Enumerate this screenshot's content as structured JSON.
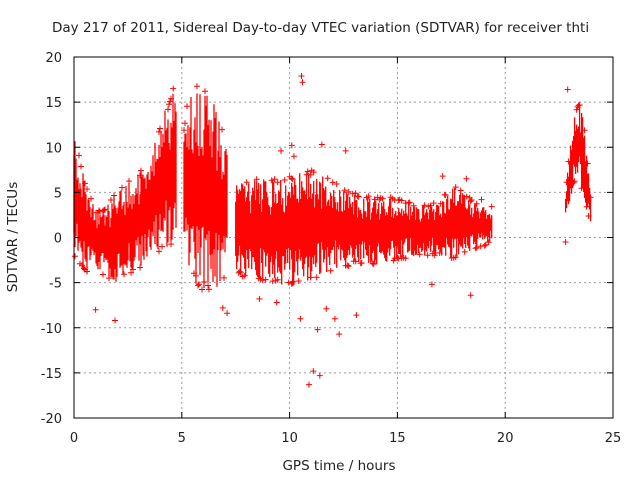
{
  "chart_data": {
    "type": "scatter",
    "title": "Day 217 of 2011, Sidereal Day-to-day VTEC variation (SDTVAR) for receiver thti",
    "xlabel": "GPS time / hours",
    "ylabel": "SDTVAR / TECUs",
    "xlim": [
      0,
      25
    ],
    "ylim": [
      -20,
      20
    ],
    "xticks": [
      0,
      5,
      10,
      15,
      20,
      25
    ],
    "yticks": [
      -20,
      -15,
      -10,
      -5,
      0,
      5,
      10,
      15,
      20
    ],
    "grid": true,
    "marker": "+",
    "color": "#ff0000",
    "envelope": [
      {
        "segment": 1,
        "x": [
          0,
          0.1,
          0.3,
          0.6,
          1.0,
          1.5,
          1.9,
          2.2,
          2.6,
          3.0,
          3.5,
          3.9,
          4.2,
          4.4,
          4.6,
          4.75
        ],
        "upper": [
          11.5,
          11.0,
          8.5,
          5.5,
          3.0,
          3.5,
          5.0,
          5.5,
          6.5,
          7.0,
          9.5,
          12.0,
          14.0,
          15.0,
          16.5,
          16.0
        ],
        "lower": [
          -2.5,
          -3.0,
          -3.5,
          -4.0,
          -4.0,
          -4.5,
          -5.0,
          -4.5,
          -4.0,
          -3.5,
          -2.5,
          -2.0,
          -1.5,
          -1.0,
          -0.5,
          -0.5
        ]
      },
      {
        "segment": 2,
        "x": [
          5.1,
          5.3,
          5.6,
          6.0,
          6.4,
          6.8,
          7.1
        ],
        "upper": [
          12.5,
          15.5,
          17.0,
          16.5,
          15.5,
          13.0,
          10.0
        ],
        "lower": [
          -3.0,
          -4.0,
          -5.0,
          -6.0,
          -6.5,
          -5.0,
          -4.0
        ]
      },
      {
        "segment": 3,
        "x": [
          7.5,
          8.0,
          9.0,
          10.0,
          11.0,
          12.0,
          13.0,
          14.0,
          15.0,
          16.0,
          17.0,
          17.5,
          18.0,
          18.5,
          19.0,
          19.4
        ],
        "upper": [
          7.0,
          6.5,
          6.5,
          7.0,
          7.5,
          6.5,
          5.0,
          4.5,
          4.5,
          3.5,
          4.0,
          6.0,
          5.5,
          4.0,
          3.5,
          3.5
        ],
        "lower": [
          -4.0,
          -4.5,
          -5.0,
          -5.5,
          -5.0,
          -4.0,
          -3.0,
          -3.0,
          -2.5,
          -2.0,
          -2.0,
          -2.5,
          -2.0,
          -1.5,
          -1.0,
          -0.5
        ]
      },
      {
        "segment": 4,
        "x": [
          22.8,
          23.0,
          23.2,
          23.4,
          23.6,
          23.8,
          24.0
        ],
        "upper": [
          5.0,
          10.0,
          14.0,
          15.0,
          14.0,
          9.0,
          3.5
        ],
        "lower": [
          2.0,
          4.0,
          6.0,
          6.5,
          5.0,
          3.0,
          1.0
        ]
      }
    ],
    "outliers": [
      {
        "x": 10.55,
        "y": 17.9
      },
      {
        "x": 10.6,
        "y": 17.2
      },
      {
        "x": 10.9,
        "y": -16.3
      },
      {
        "x": 11.1,
        "y": -14.8
      },
      {
        "x": 11.4,
        "y": -15.3
      },
      {
        "x": 11.3,
        "y": -10.2
      },
      {
        "x": 10.5,
        "y": -9.0
      },
      {
        "x": 12.1,
        "y": -9.0
      },
      {
        "x": 12.3,
        "y": -10.7
      },
      {
        "x": 13.1,
        "y": -8.6
      },
      {
        "x": 11.7,
        "y": -7.9
      },
      {
        "x": 18.4,
        "y": -6.4
      },
      {
        "x": 1.9,
        "y": -9.2
      },
      {
        "x": 22.8,
        "y": -0.5
      },
      {
        "x": 22.9,
        "y": 16.4
      },
      {
        "x": 7.1,
        "y": -8.4
      },
      {
        "x": 9.4,
        "y": -7.2
      },
      {
        "x": 16.6,
        "y": -5.2
      },
      {
        "x": 9.6,
        "y": 9.6
      },
      {
        "x": 10.1,
        "y": 10.2
      },
      {
        "x": 11.5,
        "y": 10.3
      },
      {
        "x": 12.6,
        "y": 9.6
      },
      {
        "x": 17.1,
        "y": 6.8
      },
      {
        "x": 18.2,
        "y": 6.5
      },
      {
        "x": 18.9,
        "y": 4.2
      },
      {
        "x": 6.9,
        "y": -7.8
      },
      {
        "x": 8.6,
        "y": -6.8
      },
      {
        "x": 10.2,
        "y": 9.0
      },
      {
        "x": 1.0,
        "y": -8.0
      },
      {
        "x": 4.6,
        "y": 16.5
      }
    ]
  }
}
